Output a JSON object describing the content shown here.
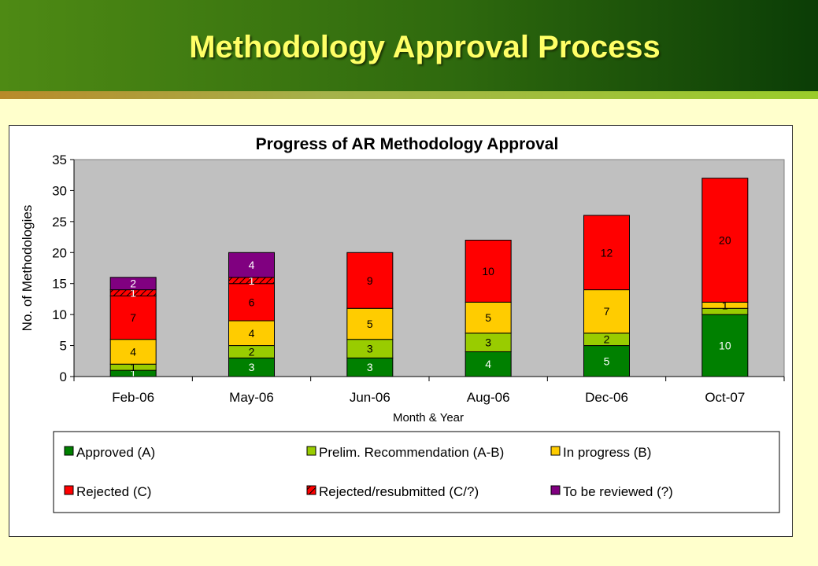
{
  "slide": {
    "title": "Methodology Approval Process"
  },
  "chart_data": {
    "type": "bar",
    "stacked": true,
    "title": "Progress of AR Methodology Approval",
    "xlabel": "Month & Year",
    "ylabel": "No. of Methodologies",
    "ylim": [
      0,
      35
    ],
    "yticks": [
      0,
      5,
      10,
      15,
      20,
      25,
      30,
      35
    ],
    "grid": false,
    "legend_position": "bottom",
    "categories": [
      "Feb-06",
      "May-06",
      "Jun-06",
      "Aug-06",
      "Dec-06",
      "Oct-07"
    ],
    "series": [
      {
        "name": "Approved (A)",
        "color": "#008000",
        "values": [
          1,
          3,
          3,
          4,
          5,
          10
        ]
      },
      {
        "name": "Prelim. Recommendation (A-B)",
        "color": "#99cc00",
        "values": [
          1,
          2,
          3,
          3,
          2,
          1
        ]
      },
      {
        "name": "In progress (B)",
        "color": "#ffcc00",
        "values": [
          4,
          4,
          5,
          5,
          7,
          1
        ]
      },
      {
        "name": "Rejected (C)",
        "color": "#ff0000",
        "values": [
          7,
          6,
          9,
          10,
          12,
          20
        ]
      },
      {
        "name": "Rejected/resubmitted (C/?)",
        "color": "#ff0000",
        "pattern": "hatched",
        "values": [
          1,
          1,
          0,
          0,
          0,
          0
        ]
      },
      {
        "name": "To be reviewed (?)",
        "color": "#800080",
        "values": [
          2,
          4,
          0,
          0,
          0,
          0
        ]
      }
    ],
    "data_labels": [
      [
        "1",
        "1",
        "4",
        "7",
        "1",
        "2"
      ],
      [
        "3",
        "2",
        "4",
        "6",
        "1",
        "4"
      ],
      [
        "3",
        "3",
        "5",
        "9",
        "",
        ""
      ],
      [
        "4",
        "3",
        "5",
        "10",
        "",
        ""
      ],
      [
        "5",
        "2",
        "7",
        "12",
        "",
        ""
      ],
      [
        "10",
        "",
        "1",
        "20",
        "",
        ""
      ]
    ],
    "label_colors": [
      "#ffffff",
      "#000000",
      "#000000",
      "#000000",
      "#ffffff",
      "#ffffff"
    ]
  }
}
